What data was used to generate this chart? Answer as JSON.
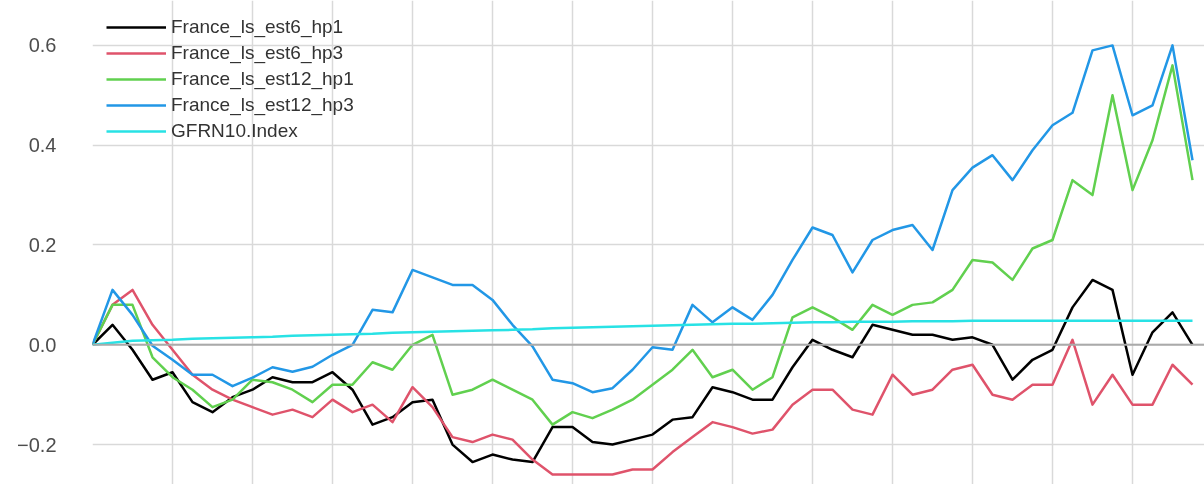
{
  "chart_data": {
    "type": "line",
    "categories": [
      null,
      null,
      null,
      null,
      null,
      null,
      null,
      null,
      null,
      null,
      null,
      null,
      null,
      null,
      null,
      null,
      null,
      null,
      null,
      null,
      null,
      null,
      null,
      null,
      null,
      null,
      null,
      null,
      null,
      null,
      null,
      null,
      null,
      null,
      null,
      null,
      null,
      null,
      null,
      null,
      null,
      null,
      null,
      null,
      null,
      null,
      null,
      null,
      null,
      null,
      null,
      null,
      null,
      null,
      null,
      null
    ],
    "ylim": [
      -0.28,
      0.69
    ],
    "yticks": [
      {
        "value": -0.2,
        "label": "−0.2"
      },
      {
        "value": 0,
        "label": "0.0"
      },
      {
        "value": 0.2,
        "label": "0.2"
      },
      {
        "value": 0.4,
        "label": "0.4"
      },
      {
        "value": 0.6,
        "label": "0.6"
      }
    ],
    "tick_labels": "y",
    "grid": true,
    "legend": "top left",
    "line_style": "solid",
    "ref_lines": [
      {
        "axis": "y",
        "value": 0,
        "label": null,
        "color": "#aaaaaa"
      }
    ],
    "series": [
      {
        "name": "France_ls_est6_hp1",
        "color": "#000000",
        "values": [
          0,
          0.04,
          -0.01,
          -0.07,
          -0.055,
          -0.115,
          -0.135,
          -0.105,
          -0.09,
          -0.065,
          -0.075,
          -0.075,
          -0.055,
          -0.09,
          -0.16,
          -0.145,
          -0.115,
          -0.11,
          -0.2,
          -0.235,
          -0.22,
          -0.23,
          -0.235,
          -0.165,
          -0.165,
          -0.195,
          -0.2,
          -0.19,
          -0.18,
          -0.15,
          -0.145,
          -0.085,
          -0.095,
          -0.11,
          -0.11,
          -0.045,
          0.01,
          -0.01,
          -0.025,
          0.04,
          0.03,
          0.02,
          0.02,
          0.01,
          0.015,
          0.0,
          -0.07,
          -0.03,
          -0.01,
          0.075,
          0.13,
          0.11,
          -0.06,
          0.025,
          0.065,
          0.0
        ]
      },
      {
        "name": "France_ls_est6_hp3",
        "color": "#df536b",
        "values": [
          0,
          0.08,
          0.11,
          0.04,
          -0.01,
          -0.06,
          -0.09,
          -0.11,
          -0.125,
          -0.14,
          -0.13,
          -0.145,
          -0.11,
          -0.135,
          -0.12,
          -0.155,
          -0.085,
          -0.125,
          -0.185,
          -0.195,
          -0.18,
          -0.19,
          -0.23,
          -0.26,
          -0.26,
          -0.26,
          -0.26,
          -0.25,
          -0.25,
          -0.215,
          -0.185,
          -0.155,
          -0.165,
          -0.178,
          -0.17,
          -0.12,
          -0.09,
          -0.09,
          -0.13,
          -0.14,
          -0.06,
          -0.1,
          -0.09,
          -0.05,
          -0.04,
          -0.1,
          -0.11,
          -0.08,
          -0.08,
          0.01,
          -0.12,
          -0.06,
          -0.12,
          -0.12,
          -0.04,
          -0.08
        ]
      },
      {
        "name": "France_ls_est12_hp1",
        "color": "#61d04f",
        "values": [
          0,
          0.08,
          0.08,
          -0.025,
          -0.065,
          -0.09,
          -0.125,
          -0.11,
          -0.07,
          -0.075,
          -0.09,
          -0.115,
          -0.08,
          -0.08,
          -0.035,
          -0.05,
          0.0,
          0.02,
          -0.1,
          -0.09,
          -0.07,
          -0.09,
          -0.11,
          -0.16,
          -0.135,
          -0.147,
          -0.13,
          -0.11,
          -0.08,
          -0.05,
          -0.01,
          -0.065,
          -0.05,
          -0.09,
          -0.065,
          0.055,
          0.075,
          0.055,
          0.03,
          0.08,
          0.06,
          0.08,
          0.085,
          0.11,
          0.17,
          0.165,
          0.13,
          0.193,
          0.21,
          0.33,
          0.3,
          0.5,
          0.31,
          0.41,
          0.56,
          0.33
        ]
      },
      {
        "name": "France_ls_est12_hp3",
        "color": "#2297e6",
        "values": [
          0,
          0.11,
          0.06,
          -0.002,
          -0.03,
          -0.06,
          -0.06,
          -0.083,
          -0.066,
          -0.045,
          -0.054,
          -0.044,
          -0.02,
          0.0,
          0.07,
          0.065,
          0.15,
          0.135,
          0.12,
          0.12,
          0.09,
          0.04,
          -0.003,
          -0.07,
          -0.077,
          -0.095,
          -0.087,
          -0.05,
          -0.005,
          -0.01,
          0.08,
          0.045,
          0.075,
          0.05,
          0.1,
          0.17,
          0.235,
          0.22,
          0.145,
          0.21,
          0.23,
          0.24,
          0.19,
          0.31,
          0.355,
          0.38,
          0.33,
          0.39,
          0.44,
          0.465,
          0.59,
          0.6,
          0.46,
          0.48,
          0.6,
          0.37
        ]
      },
      {
        "name": "GFRN10.Index",
        "color": "#28e2e5",
        "values": [
          0,
          0.004,
          0.008,
          0.009,
          0.01,
          0.012,
          0.013,
          0.014,
          0.015,
          0.016,
          0.018,
          0.019,
          0.02,
          0.021,
          0.022,
          0.024,
          0.025,
          0.026,
          0.027,
          0.028,
          0.029,
          0.03,
          0.031,
          0.033,
          0.034,
          0.035,
          0.036,
          0.037,
          0.038,
          0.039,
          0.04,
          0.041,
          0.042,
          0.042,
          0.043,
          0.044,
          0.045,
          0.045,
          0.046,
          0.046,
          0.046,
          0.047,
          0.047,
          0.047,
          0.048,
          0.048,
          0.048,
          0.048,
          0.048,
          0.048,
          0.048,
          0.048,
          0.048,
          0.048,
          0.048,
          0.048
        ]
      }
    ]
  }
}
